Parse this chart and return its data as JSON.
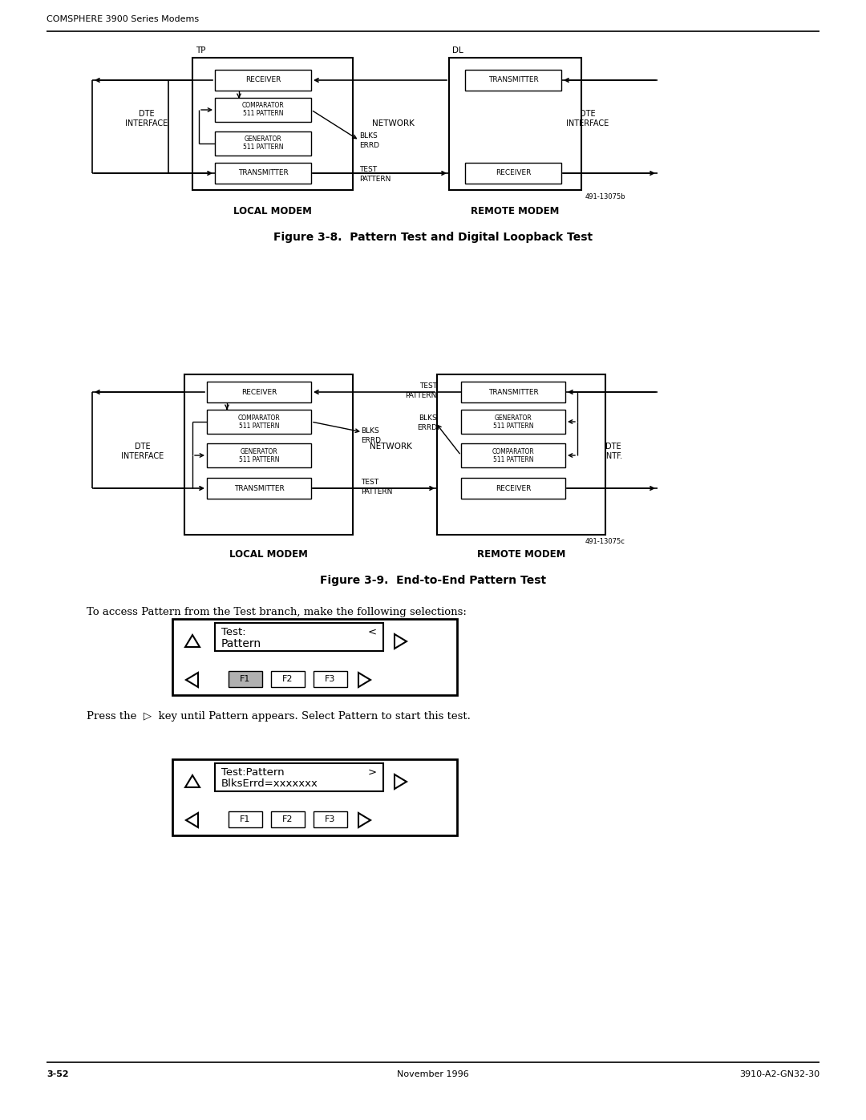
{
  "page_bg": "#ffffff",
  "header_text": "COMSPHERE 3900 Series Modems",
  "footer_left": "3-52",
  "footer_center": "November 1996",
  "footer_right": "3910-A2-GN32-30",
  "fig1_caption": "Figure 3-8.  Pattern Test and Digital Loopback Test",
  "fig2_caption": "Figure 3-9.  End-to-End Pattern Test",
  "para1": "To access Pattern from the Test branch, make the following selections:",
  "para2_prefix": "Press the  ",
  "para2_arrow": "▷",
  "para2_suffix": "  key until Pattern appears. Select Pattern to start this test.",
  "display1_l1": "Test:",
  "display1_l2": "Pattern",
  "display1_sym": "<",
  "display2_l1": "Test:Pattern",
  "display2_l2": "BlksErrd=xxxxxxx",
  "display2_sym": ">",
  "ref1": "491-13075b",
  "ref2": "491-13075c",
  "lm_label": "LOCAL MODEM",
  "rm_label": "REMOTE MODEM"
}
